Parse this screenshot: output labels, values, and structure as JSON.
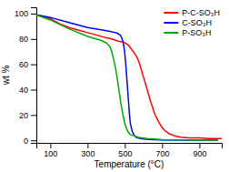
{
  "chart_data": {
    "type": "line",
    "xlabel": "Temperature (°C)",
    "ylabel": "wt %",
    "xlim": [
      25,
      1020
    ],
    "ylim": [
      -2,
      105
    ],
    "xticks": [
      100,
      300,
      500,
      700,
      900
    ],
    "yticks": [
      0,
      20,
      40,
      60,
      80,
      100
    ],
    "grid": false,
    "legend": "upper right",
    "series": [
      {
        "name": "P-C-SO₃H",
        "color": "#ff0000",
        "x": [
          25,
          100,
          150,
          200,
          250,
          300,
          350,
          400,
          430,
          450,
          470,
          490,
          500,
          510,
          520,
          530,
          540,
          550,
          560,
          570,
          580,
          590,
          600,
          620,
          640,
          660,
          680,
          700,
          720,
          740,
          760,
          780,
          800,
          850,
          900,
          950,
          1000,
          1020
        ],
        "values": [
          99,
          96,
          92,
          89,
          87,
          85,
          83,
          81,
          80,
          79,
          78,
          77.5,
          77,
          76,
          75,
          73,
          71,
          69,
          67,
          64,
          60,
          55,
          50,
          40,
          30,
          21,
          15,
          10,
          7,
          5,
          4,
          3,
          2.5,
          2,
          2,
          1.5,
          1.5,
          1.5
        ]
      },
      {
        "name": "C-SO₃H",
        "color": "#0000ff",
        "x": [
          25,
          100,
          200,
          300,
          380,
          420,
          450,
          460,
          470,
          475,
          480,
          485,
          490,
          495,
          500,
          505,
          510,
          515,
          520,
          525,
          530,
          540,
          550,
          560,
          570,
          580,
          600,
          620,
          650,
          700,
          800,
          900,
          1000
        ],
        "values": [
          99,
          97,
          93,
          89,
          87,
          86,
          85,
          84.5,
          83.5,
          83,
          82,
          80,
          78,
          74,
          68,
          60,
          50,
          40,
          30,
          20,
          13,
          7,
          4,
          2.5,
          2,
          1.5,
          1,
          0.8,
          0.5,
          0.3,
          0.2,
          0.1,
          0.1
        ]
      },
      {
        "name": "P-SO₃H",
        "color": "#00aa00",
        "x": [
          25,
          100,
          200,
          300,
          370,
          400,
          420,
          430,
          440,
          450,
          460,
          470,
          480,
          490,
          500,
          510,
          520,
          530,
          540,
          550,
          560,
          570,
          590,
          620,
          660,
          700,
          800,
          900,
          1000
        ],
        "values": [
          99,
          95,
          88,
          82,
          79,
          77,
          74,
          70,
          64,
          57,
          48,
          38,
          28,
          20,
          13,
          9,
          6,
          4.5,
          4,
          3.5,
          3,
          2.5,
          2,
          1.5,
          1,
          0.5,
          0.3,
          0.2,
          0.1
        ]
      }
    ]
  }
}
